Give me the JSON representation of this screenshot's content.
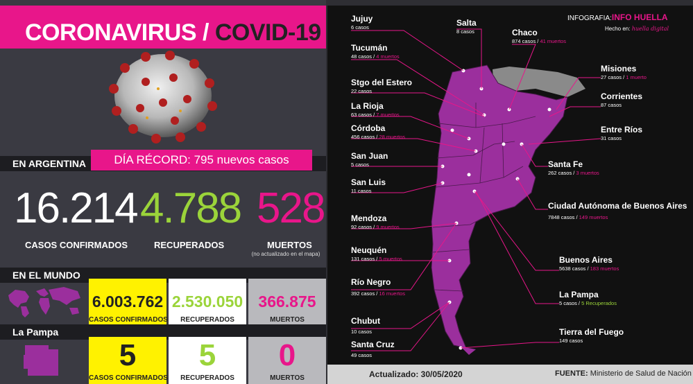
{
  "header": {
    "title_pink": "CORONAVIRUS / ",
    "title_dark": "COVID-19"
  },
  "argentina": {
    "section_label": "EN ARGENTINA",
    "record_banner": "DÍA RÉCORD: 795 nuevos casos",
    "confirmed": "16.214",
    "confirmed_label": "CASOS CONFIRMADOS",
    "recovered": "4.788",
    "recovered_label": "RECUPERADOS",
    "deaths": "528",
    "deaths_label": "MUERTOS",
    "deaths_note": "(no actualizado en el mapa)"
  },
  "world": {
    "section_label": "EN EL MUNDO",
    "confirmed": "6.003.762",
    "confirmed_label": "CASOS CONFIRMADOS",
    "recovered": "2.530.050",
    "recovered_label": "RECUPERADOS",
    "deaths": "366.875",
    "deaths_label": "MUERTOS"
  },
  "la_pampa": {
    "section_label": "La Pampa",
    "confirmed": "5",
    "confirmed_label": "CASOS CONFIRMADOS",
    "recovered": "5",
    "recovered_label": "RECUPERADOS",
    "deaths": "0",
    "deaths_label": "MUERTOS"
  },
  "brand": {
    "prefix": "INFOGRAFIA:",
    "name": "INFO HUELLA",
    "made_in": "Hecho en:",
    "made_by": "huella digital"
  },
  "provinces": {
    "jujuy": {
      "name": "Jujuy",
      "cases": "6 casos"
    },
    "salta": {
      "name": "Salta",
      "cases": "8 casos"
    },
    "chaco": {
      "name": "Chaco",
      "cases": "874 casos / ",
      "deaths": "41 muertos"
    },
    "tucuman": {
      "name": "Tucumán",
      "cases": "48 casos / ",
      "deaths": "4 muertos"
    },
    "misiones": {
      "name": "Misiones",
      "cases": "27 casos / ",
      "deaths": "1 muerto"
    },
    "sgo_estero": {
      "name": "Stgo del Estero",
      "cases": "22 casos"
    },
    "corrientes": {
      "name": "Corrientes",
      "cases": "87 casos"
    },
    "la_rioja": {
      "name": "La Rioja",
      "cases": "63 casos / ",
      "deaths": "7 muertos"
    },
    "cordoba": {
      "name": "Córdoba",
      "cases": "456 casos / ",
      "deaths": "28 muertos"
    },
    "entre_rios": {
      "name": "Entre Ríos",
      "cases": "31 casos"
    },
    "san_juan": {
      "name": "San Juan",
      "cases": "5 casos"
    },
    "santa_fe": {
      "name": "Santa Fe",
      "cases": "262 casos / ",
      "deaths": "3 muertos"
    },
    "san_luis": {
      "name": "San Luis",
      "cases": "11 casos"
    },
    "caba": {
      "name": "Ciudad Autónoma de Buenos Aires",
      "cases": "7848 casos / ",
      "deaths": "149 muertos"
    },
    "mendoza": {
      "name": "Mendoza",
      "cases": "92 casos / ",
      "deaths": "9 muertos"
    },
    "neuquen": {
      "name": "Neuquén",
      "cases": "131 casos / ",
      "deaths": "5 muertos"
    },
    "buenos_aires": {
      "name": "Buenos Aires",
      "cases": "5638 casos / ",
      "deaths": "183 muertos"
    },
    "rio_negro": {
      "name": "Río Negro",
      "cases": "392 casos / ",
      "deaths": "16 muertos"
    },
    "la_pampa": {
      "name": "La Pampa",
      "cases": "5 casos / ",
      "recovered": "5 Recuperados"
    },
    "chubut": {
      "name": "Chubut",
      "cases": "10 casos"
    },
    "tierra_fuego": {
      "name": "Tierra del Fuego",
      "cases": "149 casos"
    },
    "santa_cruz": {
      "name": "Santa Cruz",
      "cases": "49 casos"
    }
  },
  "footer": {
    "updated": "Actualizado: 30/05/2020",
    "source_prefix": "FUENTE:",
    "source": "Ministerio de Salud de Nación"
  },
  "colors": {
    "pink": "#e8168a",
    "green": "#9bd43a",
    "yellow": "#fff200",
    "map_fill": "#9b2f9d",
    "gray_region": "#8a8a8a"
  }
}
